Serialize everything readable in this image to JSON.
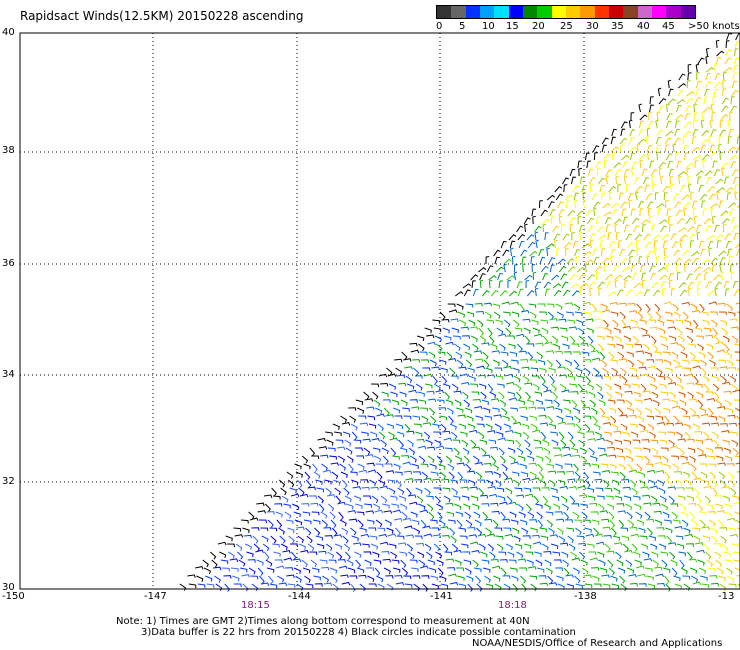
{
  "title": "Rapidsact Winds(12.5KM) 20150228 ascending",
  "legend": {
    "colors": [
      "#333333",
      "#666666",
      "#0033ff",
      "#00a0ff",
      "#00e0ff",
      "#0000ff",
      "#008800",
      "#00cc00",
      "#ffff00",
      "#ffcc00",
      "#ff9900",
      "#ff3300",
      "#cc0000",
      "#884422",
      "#cc66cc",
      "#ff00ff",
      "#aa00cc",
      "#6600aa"
    ],
    "labels": [
      "0",
      "5",
      "10",
      "15",
      "20",
      "25",
      "30",
      "35",
      "40",
      "45",
      ">50 knots"
    ]
  },
  "map": {
    "y_labels": [
      "40",
      "38",
      "36",
      "34",
      "32",
      "30"
    ],
    "x_labels": [
      "-150",
      "-147",
      "-144",
      "-141",
      "-138",
      "-13"
    ],
    "times": [
      "18:15",
      "18:18"
    ]
  },
  "notes": {
    "line1": "Note: 1) Times are GMT 2)Times along bottom correspond to measurement at 40N",
    "line2": "3)Data buffer is 22 hrs from 20150228 4) Black circles indicate possible contamination",
    "line3": "NOAA/NESDIS/Office of Research and Applications"
  }
}
